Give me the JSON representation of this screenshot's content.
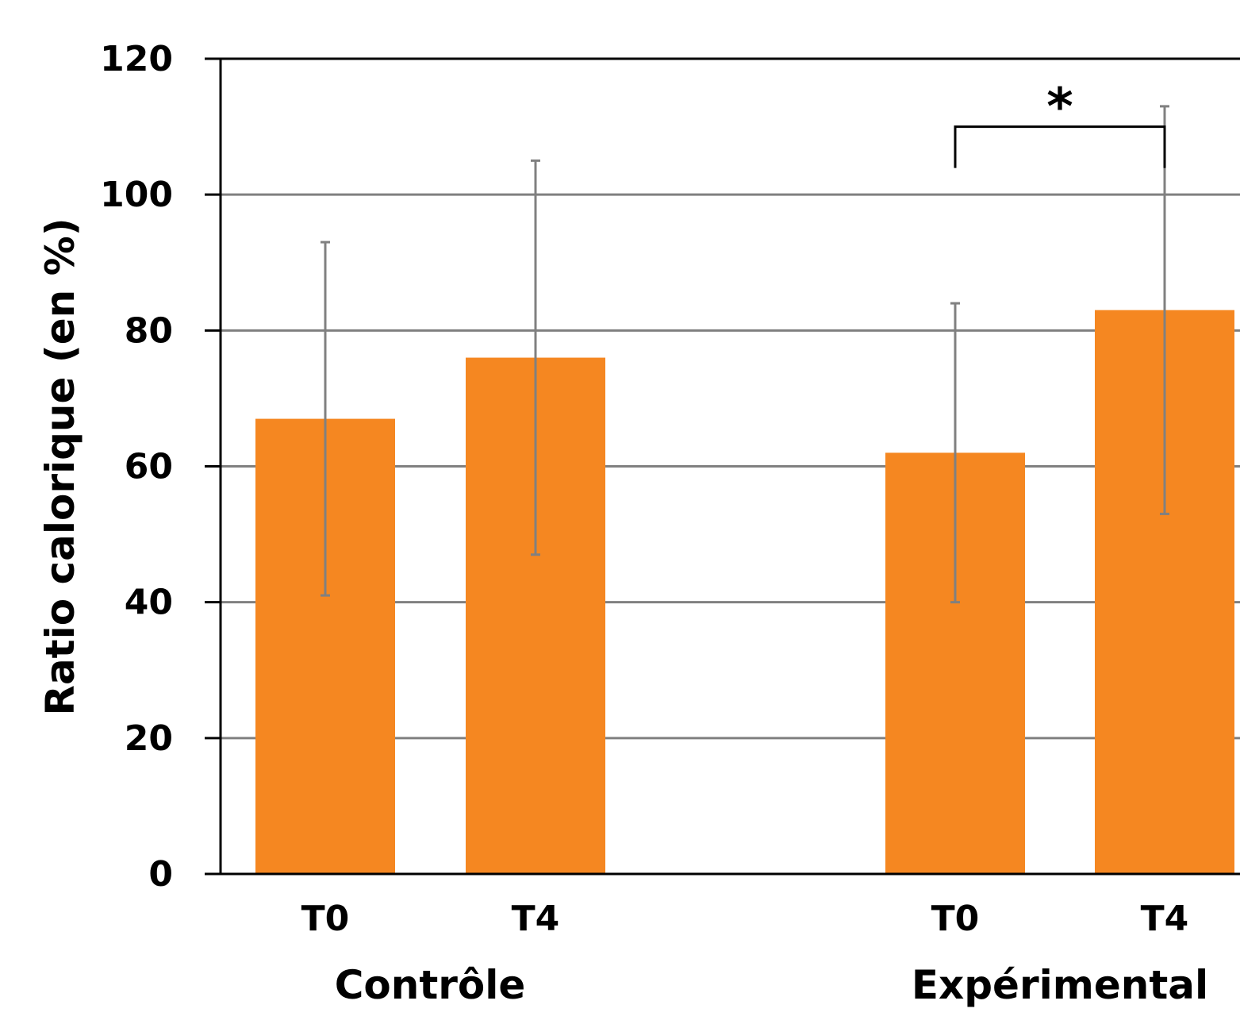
{
  "chart_data": {
    "type": "bar",
    "ylabel": "Ratio calorique (en %)",
    "ylim": [
      0,
      120
    ],
    "yticks": [
      0,
      20,
      40,
      60,
      80,
      100,
      120
    ],
    "grid": true,
    "groups": [
      {
        "label": "Contrôle",
        "categories": [
          "T0",
          "T4"
        ]
      },
      {
        "label": "Expérimental",
        "categories": [
          "T0",
          "T4"
        ]
      }
    ],
    "values": [
      67,
      76,
      62,
      83
    ],
    "error_low": [
      41,
      47,
      40,
      53
    ],
    "error_high": [
      93,
      105,
      84,
      113
    ],
    "annotations": [
      {
        "text": "*",
        "between": [
          2,
          3
        ],
        "bracket_y": 110
      }
    ],
    "colors": {
      "bar": "#F58721",
      "error": "#808080",
      "grid": "#808080",
      "axis": "#000000"
    }
  }
}
